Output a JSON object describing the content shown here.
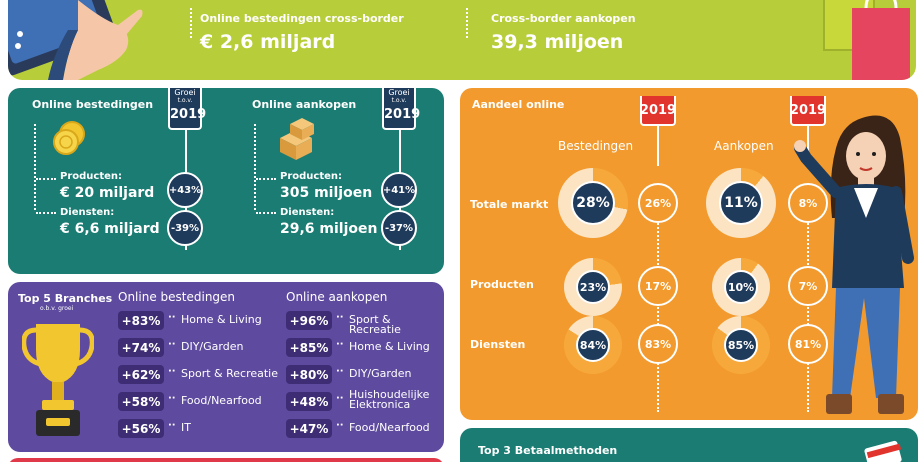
{
  "top_banner": {
    "left": {
      "label": "Online bestedingen cross-border",
      "value": "€ 2,6 miljard"
    },
    "right": {
      "label": "Cross-border aankopen",
      "value": "39,3 miljoen"
    }
  },
  "teal": {
    "left": {
      "title": "Online bestedingen",
      "year_tab": {
        "line1": "Groei",
        "line2": "t.o.v.",
        "year": "2019"
      },
      "products_label": "Producten:",
      "products_value": "€ 20 miljard",
      "products_growth": "+43%",
      "services_label": "Diensten:",
      "services_value": "€ 6,6 miljard",
      "services_growth": "-39%"
    },
    "right": {
      "title": "Online aankopen",
      "year_tab": {
        "line1": "Groei",
        "line2": "t.o.v.",
        "year": "2019"
      },
      "products_label": "Producten:",
      "products_value": "305 miljoen",
      "products_growth": "+41%",
      "services_label": "Diensten:",
      "services_value": "29,6 miljoen",
      "services_growth": "-37%"
    }
  },
  "top5": {
    "title": "Top 5 Branches",
    "subtitle": "o.b.v. groei",
    "left_heading": "Online bestedingen",
    "right_heading": "Online aankopen",
    "left": [
      {
        "pct": "+83%",
        "cat": "Home & Living"
      },
      {
        "pct": "+74%",
        "cat": "DIY/Garden"
      },
      {
        "pct": "+62%",
        "cat": "Sport & Recreatie"
      },
      {
        "pct": "+58%",
        "cat": "Food/Nearfood"
      },
      {
        "pct": "+56%",
        "cat": "IT"
      }
    ],
    "right": [
      {
        "pct": "+96%",
        "cat": "Sport & Recreatie"
      },
      {
        "pct": "+85%",
        "cat": "Home & Living"
      },
      {
        "pct": "+80%",
        "cat": "DIY/Garden"
      },
      {
        "pct": "+48%",
        "cat": "Huishoudelijke Elektronica"
      },
      {
        "pct": "+47%",
        "cat": "Food/Nearfood"
      }
    ]
  },
  "aandeel": {
    "title": "Aandeel online",
    "year": "2019",
    "col_bestedingen": "Bestedingen",
    "col_aankopen": "Aankopen",
    "rows": [
      {
        "label": "Totale markt",
        "best": 28,
        "best_text": "28%",
        "best_prev": "26%",
        "aank": 11,
        "aank_text": "11%",
        "aank_prev": "8%"
      },
      {
        "label": "Producten",
        "best": 23,
        "best_text": "23%",
        "best_prev": "17%",
        "aank": 10,
        "aank_text": "10%",
        "aank_prev": "7%"
      },
      {
        "label": "Diensten",
        "best": 84,
        "best_text": "84%",
        "best_prev": "83%",
        "aank": 85,
        "aank_text": "85%",
        "aank_prev": "81%"
      }
    ]
  },
  "payment": {
    "title": "Top 3 Betaalmethoden"
  },
  "colors": {
    "banner": "#b8cd3a",
    "teal": "#1a7c72",
    "purple": "#5e4a9e",
    "orange": "#f29a2e",
    "navy": "#1f3b5c",
    "red": "#e0342d"
  }
}
